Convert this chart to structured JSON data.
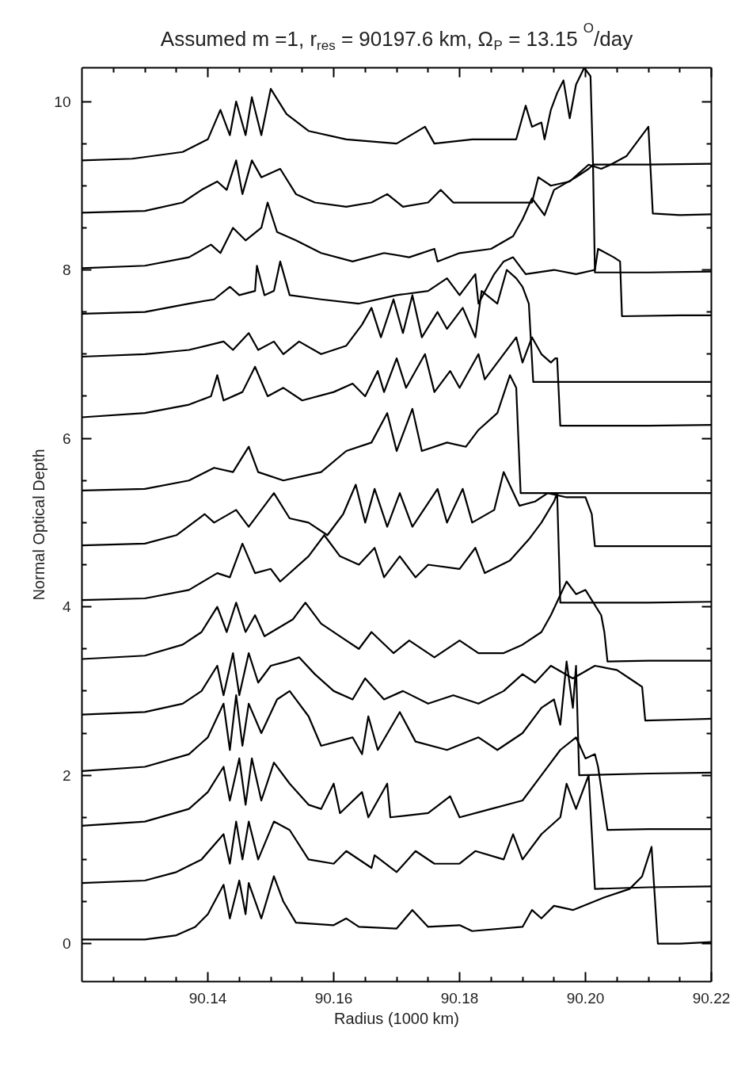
{
  "chart_data": {
    "type": "line",
    "title": "Assumed m =1, r$_{res}$ = 90197.6 km, Ω$_{P}$ =  13.15$^{O}$/day",
    "xlabel": "Radius (1000 km)",
    "ylabel": "Normal Optical Depth",
    "xlim": [
      90.12,
      90.22
    ],
    "ylim": [
      -0.45,
      10.4
    ],
    "xticks": [
      {
        "value": 90.125,
        "label": null
      },
      {
        "value": 90.13,
        "label": null
      },
      {
        "value": 90.135,
        "label": null
      },
      {
        "value": 90.14,
        "label": "90.14"
      },
      {
        "value": 90.145,
        "label": null
      },
      {
        "value": 90.15,
        "label": null
      },
      {
        "value": 90.155,
        "label": null
      },
      {
        "value": 90.16,
        "label": "90.16"
      },
      {
        "value": 90.165,
        "label": null
      },
      {
        "value": 90.17,
        "label": null
      },
      {
        "value": 90.175,
        "label": null
      },
      {
        "value": 90.18,
        "label": "90.18"
      },
      {
        "value": 90.185,
        "label": null
      },
      {
        "value": 90.19,
        "label": null
      },
      {
        "value": 90.195,
        "label": null
      },
      {
        "value": 90.2,
        "label": "90.20"
      },
      {
        "value": 90.205,
        "label": null
      },
      {
        "value": 90.21,
        "label": null
      },
      {
        "value": 90.215,
        "label": null
      },
      {
        "value": 90.22,
        "label": "90.22"
      }
    ],
    "yticks": [
      0,
      {
        "value": 0.5,
        "label": null
      },
      {
        "value": 1,
        "label": null
      },
      {
        "value": 1.5,
        "label": null
      },
      2,
      {
        "value": 2.5,
        "label": null
      },
      {
        "value": 3,
        "label": null
      },
      {
        "value": 3.5,
        "label": null
      },
      4,
      {
        "value": 4.5,
        "label": null
      },
      {
        "value": 5,
        "label": null
      },
      {
        "value": 5.5,
        "label": null
      },
      6,
      {
        "value": 6.5,
        "label": null
      },
      {
        "value": 7,
        "label": null
      },
      {
        "value": 7.5,
        "label": null
      },
      8,
      {
        "value": 8.5,
        "label": null
      },
      {
        "value": 9,
        "label": null
      },
      {
        "value": 9.5,
        "label": null
      },
      10
    ],
    "grid": false,
    "marker": "none",
    "line_style": "solid",
    "series": [
      {
        "color": "#000000",
        "x": [
          90.12,
          90.13,
          90.135,
          90.138,
          90.14,
          90.1425,
          90.1435,
          90.145,
          90.146,
          90.1465,
          90.1485,
          90.1505,
          90.152,
          90.154,
          90.16,
          90.162,
          90.164,
          90.17,
          90.1725,
          90.175,
          90.18,
          90.182,
          90.19,
          90.1915,
          90.193,
          90.195,
          90.198,
          90.203,
          90.207,
          90.209,
          90.2105,
          90.2115,
          90.215,
          90.22
        ],
        "values": [
          0.05,
          0.05,
          0.1,
          0.2,
          0.35,
          0.7,
          0.3,
          0.75,
          0.35,
          0.72,
          0.3,
          0.8,
          0.5,
          0.25,
          0.22,
          0.3,
          0.2,
          0.18,
          0.4,
          0.2,
          0.22,
          0.15,
          0.2,
          0.4,
          0.3,
          0.45,
          0.4,
          0.55,
          0.65,
          0.8,
          1.15,
          0.0,
          0.0,
          0.02
        ]
      },
      {
        "color": "#000000",
        "x": [
          90.12,
          90.13,
          90.135,
          90.139,
          90.1425,
          90.1435,
          90.1445,
          90.1455,
          90.1465,
          90.148,
          90.1505,
          90.153,
          90.156,
          90.16,
          90.162,
          90.166,
          90.1665,
          90.17,
          90.173,
          90.176,
          90.18,
          90.1825,
          90.187,
          90.1885,
          90.19,
          90.193,
          90.196,
          90.197,
          90.1985,
          90.2005,
          90.2015,
          90.21,
          90.22
        ],
        "values": [
          0.72,
          0.75,
          0.85,
          1.0,
          1.3,
          0.95,
          1.45,
          1.0,
          1.45,
          1.0,
          1.45,
          1.35,
          1.0,
          0.95,
          1.1,
          0.9,
          1.05,
          0.85,
          1.1,
          0.95,
          0.95,
          1.1,
          1.0,
          1.3,
          1.0,
          1.3,
          1.5,
          1.9,
          1.6,
          2.0,
          0.65,
          0.67,
          0.68
        ]
      },
      {
        "color": "#000000",
        "x": [
          90.12,
          90.13,
          90.137,
          90.14,
          90.1425,
          90.1435,
          90.145,
          90.146,
          90.147,
          90.1485,
          90.1505,
          90.153,
          90.156,
          90.158,
          90.16,
          90.161,
          90.1645,
          90.1655,
          90.1685,
          90.169,
          90.175,
          90.1785,
          90.18,
          90.185,
          90.19,
          90.193,
          90.196,
          90.1985,
          90.2,
          90.2015,
          90.202,
          90.2035,
          90.21,
          90.22
        ],
        "values": [
          1.4,
          1.45,
          1.6,
          1.8,
          2.1,
          1.7,
          2.2,
          1.65,
          2.2,
          1.7,
          2.15,
          1.9,
          1.65,
          1.6,
          1.9,
          1.55,
          1.8,
          1.5,
          1.9,
          1.5,
          1.55,
          1.75,
          1.5,
          1.6,
          1.7,
          2.0,
          2.3,
          2.45,
          2.2,
          2.25,
          2.1,
          1.35,
          1.36,
          1.36
        ]
      },
      {
        "color": "#000000",
        "x": [
          90.12,
          90.13,
          90.137,
          90.14,
          90.1425,
          90.1435,
          90.1445,
          90.1455,
          90.1465,
          90.1485,
          90.151,
          90.153,
          90.156,
          90.158,
          90.163,
          90.1645,
          90.1655,
          90.167,
          90.1705,
          90.173,
          90.178,
          90.183,
          90.186,
          90.19,
          90.193,
          90.195,
          90.196,
          90.197,
          90.198,
          90.1985,
          90.199,
          90.21,
          90.22
        ],
        "values": [
          2.05,
          2.1,
          2.25,
          2.45,
          2.85,
          2.3,
          2.95,
          2.35,
          2.85,
          2.5,
          2.9,
          3.0,
          2.7,
          2.35,
          2.45,
          2.25,
          2.7,
          2.3,
          2.75,
          2.4,
          2.3,
          2.45,
          2.3,
          2.5,
          2.8,
          2.9,
          2.6,
          3.35,
          2.8,
          3.3,
          2.0,
          2.02,
          2.03
        ]
      },
      {
        "color": "#000000",
        "x": [
          90.12,
          90.13,
          90.136,
          90.139,
          90.1415,
          90.1425,
          90.144,
          90.145,
          90.1465,
          90.148,
          90.15,
          90.1525,
          90.1545,
          90.157,
          90.16,
          90.163,
          90.165,
          90.168,
          90.171,
          90.175,
          90.179,
          90.183,
          90.187,
          90.19,
          90.192,
          90.1945,
          90.198,
          90.2015,
          90.205,
          90.208,
          90.209,
          90.2095,
          90.215,
          90.22
        ],
        "values": [
          2.72,
          2.75,
          2.85,
          3.0,
          3.3,
          2.95,
          3.45,
          2.95,
          3.45,
          3.1,
          3.3,
          3.35,
          3.4,
          3.2,
          3.0,
          2.9,
          3.15,
          2.9,
          3.0,
          2.85,
          2.95,
          2.85,
          3.0,
          3.2,
          3.1,
          3.3,
          3.15,
          3.3,
          3.25,
          3.1,
          3.05,
          2.65,
          2.66,
          2.67
        ]
      },
      {
        "color": "#000000",
        "x": [
          90.12,
          90.13,
          90.136,
          90.139,
          90.1415,
          90.143,
          90.1445,
          90.146,
          90.1475,
          90.149,
          90.1535,
          90.1555,
          90.158,
          90.161,
          90.164,
          90.166,
          90.1695,
          90.172,
          90.176,
          90.18,
          90.183,
          90.187,
          90.19,
          90.193,
          90.1945,
          90.197,
          90.1985,
          90.2,
          90.2025,
          90.203,
          90.2035,
          90.21,
          90.22
        ],
        "values": [
          3.38,
          3.42,
          3.55,
          3.7,
          4.0,
          3.7,
          4.05,
          3.7,
          3.9,
          3.65,
          3.85,
          4.05,
          3.8,
          3.65,
          3.5,
          3.7,
          3.45,
          3.6,
          3.4,
          3.6,
          3.45,
          3.45,
          3.55,
          3.7,
          3.9,
          4.3,
          4.15,
          4.2,
          3.9,
          3.7,
          3.35,
          3.36,
          3.36
        ]
      },
      {
        "color": "#000000",
        "x": [
          90.12,
          90.13,
          90.137,
          90.1415,
          90.1435,
          90.1455,
          90.1475,
          90.15,
          90.1515,
          90.156,
          90.1585,
          90.161,
          90.164,
          90.1665,
          90.168,
          90.1705,
          90.173,
          90.175,
          90.18,
          90.1825,
          90.184,
          90.188,
          90.191,
          90.193,
          90.195,
          90.1955,
          90.196,
          90.21,
          90.22
        ],
        "values": [
          4.08,
          4.1,
          4.2,
          4.4,
          4.35,
          4.75,
          4.4,
          4.45,
          4.3,
          4.6,
          4.85,
          4.6,
          4.5,
          4.7,
          4.35,
          4.6,
          4.35,
          4.5,
          4.45,
          4.7,
          4.4,
          4.55,
          4.8,
          5.0,
          5.25,
          5.35,
          4.05,
          4.05,
          4.06
        ]
      },
      {
        "color": "#000000",
        "x": [
          90.12,
          90.13,
          90.135,
          90.1395,
          90.141,
          90.1445,
          90.1465,
          90.1505,
          90.153,
          90.156,
          90.159,
          90.1615,
          90.1635,
          90.165,
          90.1665,
          90.1685,
          90.1705,
          90.1725,
          90.1765,
          90.178,
          90.1805,
          90.182,
          90.1855,
          90.187,
          90.1895,
          90.192,
          90.194,
          90.197,
          90.2,
          90.201,
          90.2015,
          90.21,
          90.22
        ],
        "values": [
          4.73,
          4.75,
          4.85,
          5.1,
          5.0,
          5.15,
          4.95,
          5.35,
          5.05,
          5.0,
          4.85,
          5.1,
          5.45,
          5.0,
          5.4,
          4.95,
          5.35,
          4.95,
          5.4,
          5.0,
          5.4,
          5.0,
          5.15,
          5.6,
          5.2,
          5.25,
          5.35,
          5.3,
          5.3,
          5.1,
          4.72,
          4.72,
          4.72
        ]
      },
      {
        "color": "#000000",
        "x": [
          90.12,
          90.13,
          90.137,
          90.141,
          90.144,
          90.1465,
          90.148,
          90.152,
          90.158,
          90.162,
          90.166,
          90.1685,
          90.17,
          90.1725,
          90.174,
          90.178,
          90.181,
          90.183,
          90.186,
          90.188,
          90.189,
          90.1897,
          90.2,
          90.22
        ],
        "values": [
          5.38,
          5.4,
          5.5,
          5.65,
          5.6,
          5.9,
          5.6,
          5.5,
          5.6,
          5.85,
          5.95,
          6.3,
          5.85,
          6.35,
          5.85,
          5.95,
          5.9,
          6.1,
          6.3,
          6.75,
          6.6,
          5.35,
          5.35,
          5.35
        ]
      },
      {
        "color": "#000000",
        "x": [
          90.12,
          90.13,
          90.137,
          90.1405,
          90.1415,
          90.1425,
          90.1455,
          90.1475,
          90.1495,
          90.152,
          90.155,
          90.16,
          90.163,
          90.165,
          90.167,
          90.168,
          90.17,
          90.1715,
          90.1745,
          90.176,
          90.1785,
          90.18,
          90.183,
          90.184,
          90.187,
          90.189,
          90.19,
          90.1915,
          90.193,
          90.1945,
          90.1952,
          90.1955,
          90.196,
          90.21,
          90.22
        ],
        "values": [
          6.25,
          6.3,
          6.4,
          6.5,
          6.75,
          6.45,
          6.55,
          6.85,
          6.5,
          6.6,
          6.45,
          6.55,
          6.65,
          6.5,
          6.8,
          6.55,
          6.95,
          6.6,
          7.0,
          6.55,
          6.8,
          6.6,
          7.0,
          6.7,
          7.0,
          7.2,
          6.9,
          7.2,
          7.0,
          6.9,
          6.95,
          6.95,
          6.15,
          6.15,
          6.16
        ]
      },
      {
        "color": "#000000",
        "x": [
          90.12,
          90.13,
          90.137,
          90.1425,
          90.144,
          90.1465,
          90.148,
          90.1505,
          90.152,
          90.1545,
          90.158,
          90.162,
          90.1645,
          90.166,
          90.1675,
          90.1695,
          90.171,
          90.1725,
          90.174,
          90.1765,
          90.178,
          90.1805,
          90.1825,
          90.1835,
          90.186,
          90.1875,
          90.189,
          90.19,
          90.191,
          90.1917,
          90.21,
          90.22
        ],
        "values": [
          6.97,
          7.0,
          7.05,
          7.15,
          7.05,
          7.25,
          7.05,
          7.15,
          7.0,
          7.15,
          7.0,
          7.1,
          7.35,
          7.55,
          7.2,
          7.65,
          7.25,
          7.7,
          7.2,
          7.5,
          7.3,
          7.55,
          7.2,
          7.75,
          7.6,
          8.0,
          7.9,
          7.8,
          7.6,
          6.67,
          6.67,
          6.67
        ]
      },
      {
        "color": "#000000",
        "x": [
          90.12,
          90.13,
          90.137,
          90.141,
          90.1435,
          90.145,
          90.1475,
          90.1478,
          90.149,
          90.1505,
          90.1515,
          90.153,
          90.158,
          90.164,
          90.17,
          90.175,
          90.178,
          90.18,
          90.1825,
          90.183,
          90.1855,
          90.187,
          90.1885,
          90.1905,
          90.195,
          90.1985,
          90.2015,
          90.202,
          90.2045,
          90.2055,
          90.2058,
          90.215,
          90.22
        ],
        "values": [
          7.48,
          7.5,
          7.6,
          7.65,
          7.8,
          7.7,
          7.75,
          8.05,
          7.7,
          7.75,
          8.1,
          7.7,
          7.65,
          7.6,
          7.7,
          7.75,
          7.9,
          7.7,
          7.95,
          7.6,
          7.95,
          8.1,
          8.15,
          7.95,
          8.0,
          7.95,
          8.0,
          8.25,
          8.15,
          8.1,
          7.45,
          7.46,
          7.46
        ]
      },
      {
        "color": "#000000",
        "x": [
          90.12,
          90.13,
          90.137,
          90.1405,
          90.142,
          90.144,
          90.146,
          90.1485,
          90.1495,
          90.151,
          90.154,
          90.158,
          90.163,
          90.168,
          90.172,
          90.176,
          90.1765,
          90.18,
          90.185,
          90.1885,
          90.19,
          90.1915,
          90.1935,
          90.195,
          90.1985,
          90.2005,
          90.2012,
          90.2015,
          90.21,
          90.22
        ],
        "values": [
          8.02,
          8.05,
          8.15,
          8.3,
          8.2,
          8.5,
          8.35,
          8.5,
          8.8,
          8.45,
          8.35,
          8.2,
          8.1,
          8.2,
          8.15,
          8.25,
          8.1,
          8.2,
          8.25,
          8.4,
          8.6,
          8.85,
          8.65,
          8.95,
          9.1,
          9.2,
          9.25,
          7.97,
          7.97,
          7.98
        ]
      },
      {
        "color": "#000000",
        "x": [
          90.12,
          90.13,
          90.136,
          90.139,
          90.1415,
          90.143,
          90.1445,
          90.1455,
          90.147,
          90.1485,
          90.1515,
          90.154,
          90.157,
          90.162,
          90.166,
          90.1685,
          90.171,
          90.175,
          90.177,
          90.179,
          90.184,
          90.1895,
          90.1915,
          90.1925,
          90.1945,
          90.1975,
          90.199,
          90.2005,
          90.2025,
          90.204,
          90.2065,
          90.21,
          90.2107,
          90.215,
          90.22
        ],
        "values": [
          8.68,
          8.7,
          8.8,
          8.95,
          9.05,
          8.95,
          9.3,
          8.9,
          9.3,
          9.1,
          9.2,
          8.9,
          8.8,
          8.75,
          8.8,
          8.9,
          8.75,
          8.8,
          8.95,
          8.8,
          8.8,
          8.8,
          8.8,
          9.1,
          9.0,
          9.05,
          9.15,
          9.25,
          9.2,
          9.25,
          9.35,
          9.7,
          8.67,
          8.65,
          8.66
        ]
      },
      {
        "color": "#000000",
        "x": [
          90.12,
          90.128,
          90.136,
          90.14,
          90.142,
          90.1435,
          90.1445,
          90.146,
          90.147,
          90.1485,
          90.15,
          90.1525,
          90.156,
          90.162,
          90.17,
          90.1745,
          90.176,
          90.182,
          90.189,
          90.1905,
          90.1915,
          90.193,
          90.1935,
          90.1945,
          90.1955,
          90.1965,
          90.1975,
          90.1985,
          90.1998,
          90.2008,
          90.2012,
          90.21,
          90.22
        ],
        "values": [
          9.3,
          9.32,
          9.4,
          9.55,
          9.9,
          9.6,
          10.0,
          9.6,
          10.05,
          9.6,
          10.15,
          9.85,
          9.65,
          9.55,
          9.5,
          9.7,
          9.5,
          9.55,
          9.55,
          9.95,
          9.7,
          9.75,
          9.55,
          9.9,
          10.1,
          10.25,
          9.8,
          10.2,
          10.4,
          10.3,
          9.25,
          9.25,
          9.26
        ]
      }
    ]
  }
}
